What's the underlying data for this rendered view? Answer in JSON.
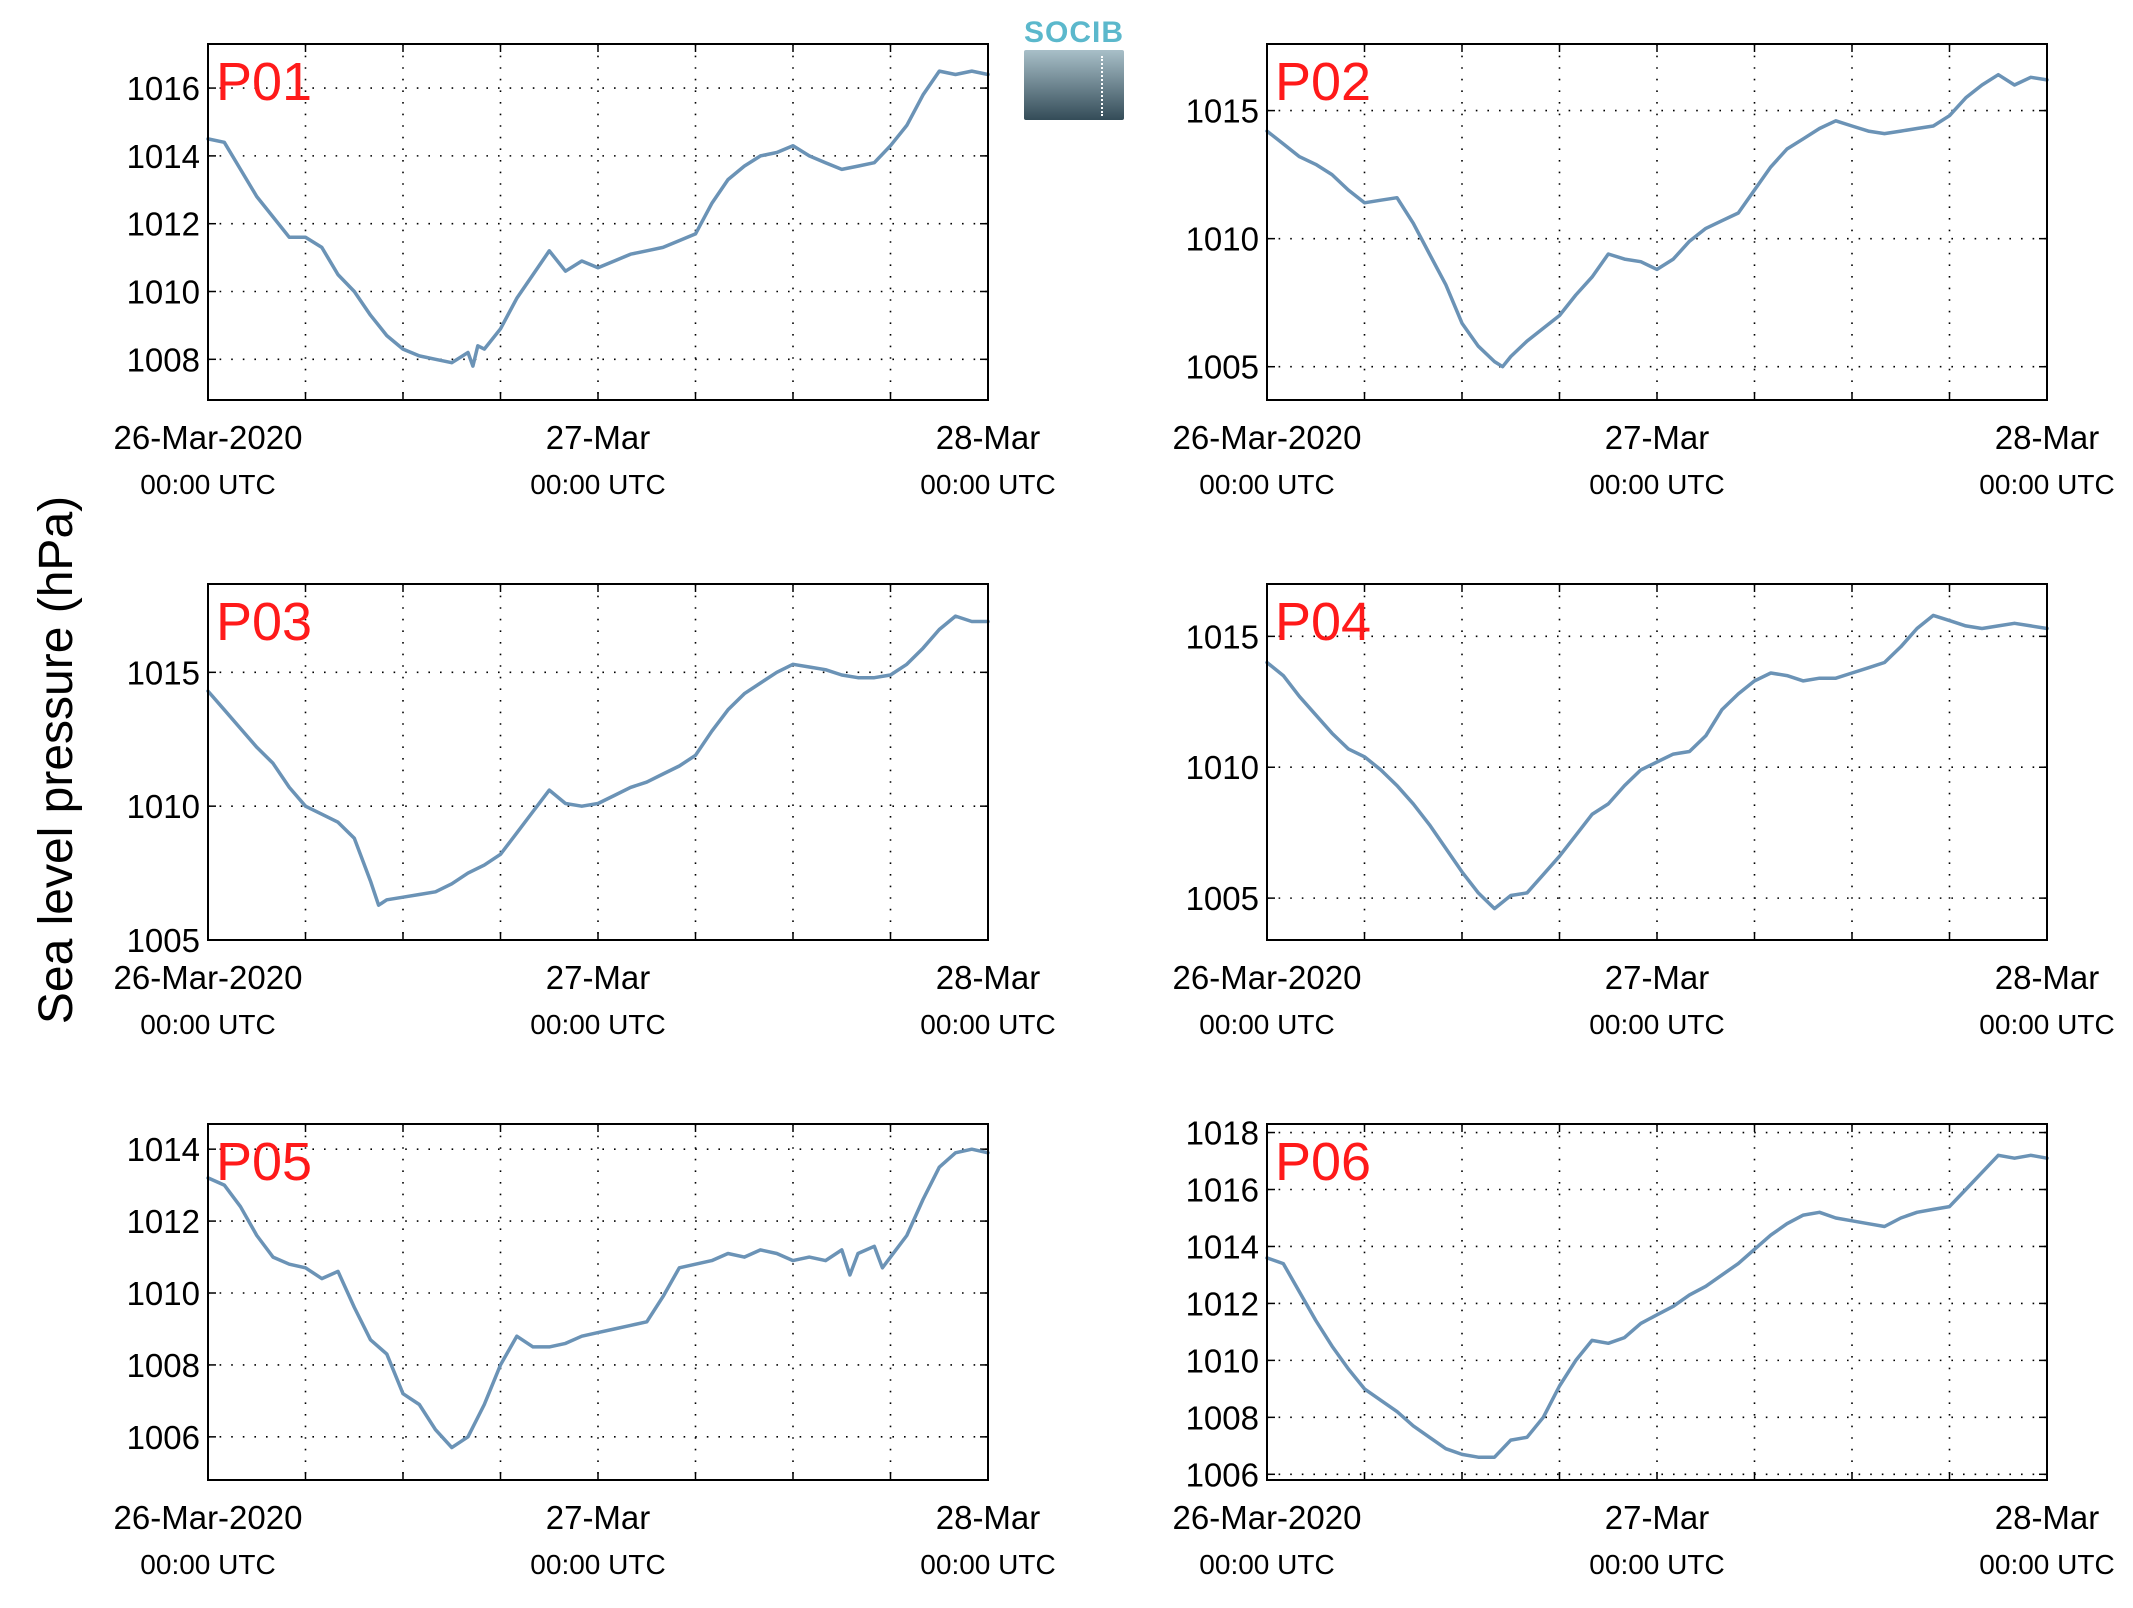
{
  "figure": {
    "ylabel": "Sea level pressure (hPa)",
    "logo_text": "SOCIB"
  },
  "chart_data": [
    {
      "type": "line",
      "panel_label": "P01",
      "ylim": [
        1006.8,
        1017.3
      ],
      "yticks": [
        1008,
        1010,
        1012,
        1014,
        1016
      ],
      "xlim": [
        0,
        48
      ],
      "x_major_ticks": [
        {
          "x": 0,
          "label": "26-Mar-2020",
          "sublabel": "00:00 UTC"
        },
        {
          "x": 24,
          "label": "27-Mar",
          "sublabel": "00:00 UTC"
        },
        {
          "x": 48,
          "label": "28-Mar",
          "sublabel": "00:00 UTC"
        }
      ],
      "x_grid_step": 6,
      "grid": true,
      "series_color": "#6b93b6",
      "x": [
        0,
        1,
        2,
        3,
        4,
        5,
        6,
        7,
        8,
        9,
        10,
        11,
        12,
        13,
        14,
        15,
        16,
        16.3,
        16.6,
        17,
        18,
        19,
        20,
        21,
        22,
        23,
        24,
        25,
        26,
        27,
        28,
        29,
        30,
        31,
        32,
        33,
        34,
        35,
        36,
        37,
        38,
        39,
        40,
        41,
        42,
        43,
        44,
        45,
        46,
        47,
        48
      ],
      "y": [
        1014.5,
        1014.4,
        1013.6,
        1012.8,
        1012.2,
        1011.6,
        1011.6,
        1011.3,
        1010.5,
        1010.0,
        1009.3,
        1008.7,
        1008.3,
        1008.1,
        1008.0,
        1007.9,
        1008.2,
        1007.8,
        1008.4,
        1008.3,
        1008.9,
        1009.8,
        1010.5,
        1011.2,
        1010.6,
        1010.9,
        1010.7,
        1010.9,
        1011.1,
        1011.2,
        1011.3,
        1011.5,
        1011.7,
        1012.6,
        1013.3,
        1013.7,
        1014.0,
        1014.1,
        1014.3,
        1014.0,
        1013.8,
        1013.6,
        1013.7,
        1013.8,
        1014.3,
        1014.9,
        1015.8,
        1016.5,
        1016.4,
        1016.5,
        1016.4
      ]
    },
    {
      "type": "line",
      "panel_label": "P02",
      "ylim": [
        1003.7,
        1017.6
      ],
      "yticks": [
        1005,
        1010,
        1015
      ],
      "xlim": [
        0,
        48
      ],
      "x_major_ticks": [
        {
          "x": 0,
          "label": "26-Mar-2020",
          "sublabel": "00:00 UTC"
        },
        {
          "x": 24,
          "label": "27-Mar",
          "sublabel": "00:00 UTC"
        },
        {
          "x": 48,
          "label": "28-Mar",
          "sublabel": "00:00 UTC"
        }
      ],
      "x_grid_step": 6,
      "grid": true,
      "series_color": "#6b93b6",
      "x": [
        0,
        1,
        2,
        3,
        4,
        5,
        6,
        7,
        8,
        9,
        10,
        11,
        12,
        13,
        14,
        14.5,
        15,
        16,
        17,
        18,
        19,
        20,
        21,
        22,
        23,
        24,
        25,
        26,
        27,
        28,
        29,
        30,
        31,
        32,
        33,
        34,
        35,
        36,
        37,
        38,
        39,
        40,
        41,
        42,
        43,
        44,
        45,
        46,
        47,
        48
      ],
      "y": [
        1014.2,
        1013.7,
        1013.2,
        1012.9,
        1012.5,
        1011.9,
        1011.4,
        1011.5,
        1011.6,
        1010.6,
        1009.4,
        1008.2,
        1006.7,
        1005.8,
        1005.2,
        1005.0,
        1005.4,
        1006.0,
        1006.5,
        1007.0,
        1007.8,
        1008.5,
        1009.4,
        1009.2,
        1009.1,
        1008.8,
        1009.2,
        1009.9,
        1010.4,
        1010.7,
        1011.0,
        1011.9,
        1012.8,
        1013.5,
        1013.9,
        1014.3,
        1014.6,
        1014.4,
        1014.2,
        1014.1,
        1014.2,
        1014.3,
        1014.4,
        1014.8,
        1015.5,
        1016.0,
        1016.4,
        1016.0,
        1016.3,
        1016.2
      ]
    },
    {
      "type": "line",
      "panel_label": "P03",
      "ylim": [
        1005.0,
        1018.3
      ],
      "yticks": [
        1005,
        1010,
        1015
      ],
      "xlim": [
        0,
        48
      ],
      "x_major_ticks": [
        {
          "x": 0,
          "label": "26-Mar-2020",
          "sublabel": "00:00 UTC"
        },
        {
          "x": 24,
          "label": "27-Mar",
          "sublabel": "00:00 UTC"
        },
        {
          "x": 48,
          "label": "28-Mar",
          "sublabel": "00:00 UTC"
        }
      ],
      "x_grid_step": 6,
      "grid": true,
      "series_color": "#6b93b6",
      "x": [
        0,
        1,
        2,
        3,
        4,
        5,
        6,
        7,
        8,
        9,
        10,
        10.5,
        11,
        12,
        13,
        14,
        15,
        16,
        17,
        18,
        19,
        20,
        21,
        22,
        23,
        24,
        25,
        26,
        27,
        28,
        29,
        30,
        31,
        32,
        33,
        34,
        35,
        36,
        37,
        38,
        39,
        40,
        41,
        42,
        43,
        44,
        45,
        46,
        47,
        48
      ],
      "y": [
        1014.3,
        1013.6,
        1012.9,
        1012.2,
        1011.6,
        1010.7,
        1010.0,
        1009.7,
        1009.4,
        1008.8,
        1007.2,
        1006.3,
        1006.5,
        1006.6,
        1006.7,
        1006.8,
        1007.1,
        1007.5,
        1007.8,
        1008.2,
        1009.0,
        1009.8,
        1010.6,
        1010.1,
        1010.0,
        1010.1,
        1010.4,
        1010.7,
        1010.9,
        1011.2,
        1011.5,
        1011.9,
        1012.8,
        1013.6,
        1014.2,
        1014.6,
        1015.0,
        1015.3,
        1015.2,
        1015.1,
        1014.9,
        1014.8,
        1014.8,
        1014.9,
        1015.3,
        1015.9,
        1016.6,
        1017.1,
        1016.9,
        1016.9
      ]
    },
    {
      "type": "line",
      "panel_label": "P04",
      "ylim": [
        1003.4,
        1017.0
      ],
      "yticks": [
        1005,
        1010,
        1015
      ],
      "xlim": [
        0,
        48
      ],
      "x_major_ticks": [
        {
          "x": 0,
          "label": "26-Mar-2020",
          "sublabel": "00:00 UTC"
        },
        {
          "x": 24,
          "label": "27-Mar",
          "sublabel": "00:00 UTC"
        },
        {
          "x": 48,
          "label": "28-Mar",
          "sublabel": "00:00 UTC"
        }
      ],
      "x_grid_step": 6,
      "grid": true,
      "series_color": "#6b93b6",
      "x": [
        0,
        1,
        2,
        3,
        4,
        5,
        6,
        7,
        8,
        9,
        10,
        11,
        12,
        13,
        14,
        15,
        16,
        17,
        18,
        19,
        20,
        21,
        22,
        23,
        24,
        25,
        26,
        27,
        28,
        29,
        30,
        31,
        32,
        33,
        34,
        35,
        36,
        37,
        38,
        39,
        40,
        41,
        42,
        43,
        44,
        45,
        46,
        47,
        48
      ],
      "y": [
        1014.0,
        1013.5,
        1012.7,
        1012.0,
        1011.3,
        1010.7,
        1010.4,
        1009.9,
        1009.3,
        1008.6,
        1007.8,
        1006.9,
        1006.0,
        1005.2,
        1004.6,
        1005.1,
        1005.2,
        1005.9,
        1006.6,
        1007.4,
        1008.2,
        1008.6,
        1009.3,
        1009.9,
        1010.2,
        1010.5,
        1010.6,
        1011.2,
        1012.2,
        1012.8,
        1013.3,
        1013.6,
        1013.5,
        1013.3,
        1013.4,
        1013.4,
        1013.6,
        1013.8,
        1014.0,
        1014.6,
        1015.3,
        1015.8,
        1015.6,
        1015.4,
        1015.3,
        1015.4,
        1015.5,
        1015.4,
        1015.3
      ]
    },
    {
      "type": "line",
      "panel_label": "P05",
      "ylim": [
        1004.8,
        1014.7
      ],
      "yticks": [
        1006,
        1008,
        1010,
        1012,
        1014
      ],
      "xlim": [
        0,
        48
      ],
      "x_major_ticks": [
        {
          "x": 0,
          "label": "26-Mar-2020",
          "sublabel": "00:00 UTC"
        },
        {
          "x": 24,
          "label": "27-Mar",
          "sublabel": "00:00 UTC"
        },
        {
          "x": 48,
          "label": "28-Mar",
          "sublabel": "00:00 UTC"
        }
      ],
      "x_grid_step": 6,
      "grid": true,
      "series_color": "#6b93b6",
      "x": [
        0,
        1,
        2,
        3,
        4,
        5,
        6,
        7,
        8,
        9,
        10,
        11,
        12,
        13,
        14,
        15,
        16,
        17,
        18,
        19,
        20,
        21,
        22,
        23,
        24,
        25,
        26,
        27,
        28,
        29,
        30,
        31,
        32,
        33,
        34,
        35,
        36,
        37,
        38,
        39,
        39.5,
        40,
        41,
        41.5,
        42,
        43,
        44,
        45,
        46,
        47,
        48
      ],
      "y": [
        1013.2,
        1013.0,
        1012.4,
        1011.6,
        1011.0,
        1010.8,
        1010.7,
        1010.4,
        1010.6,
        1009.6,
        1008.7,
        1008.3,
        1007.2,
        1006.9,
        1006.2,
        1005.7,
        1006.0,
        1006.9,
        1008.0,
        1008.8,
        1008.5,
        1008.5,
        1008.6,
        1008.8,
        1008.9,
        1009.0,
        1009.1,
        1009.2,
        1009.9,
        1010.7,
        1010.8,
        1010.9,
        1011.1,
        1011.0,
        1011.2,
        1011.1,
        1010.9,
        1011.0,
        1010.9,
        1011.2,
        1010.5,
        1011.1,
        1011.3,
        1010.7,
        1011.0,
        1011.6,
        1012.6,
        1013.5,
        1013.9,
        1014.0,
        1013.9
      ]
    },
    {
      "type": "line",
      "panel_label": "P06",
      "ylim": [
        1005.8,
        1018.3
      ],
      "yticks": [
        1006,
        1008,
        1010,
        1012,
        1014,
        1016,
        1018
      ],
      "xlim": [
        0,
        48
      ],
      "x_major_ticks": [
        {
          "x": 0,
          "label": "26-Mar-2020",
          "sublabel": "00:00 UTC"
        },
        {
          "x": 24,
          "label": "27-Mar",
          "sublabel": "00:00 UTC"
        },
        {
          "x": 48,
          "label": "28-Mar",
          "sublabel": "00:00 UTC"
        }
      ],
      "x_grid_step": 6,
      "grid": true,
      "series_color": "#6b93b6",
      "x": [
        0,
        1,
        2,
        3,
        4,
        5,
        6,
        7,
        8,
        9,
        10,
        11,
        12,
        13,
        14,
        15,
        16,
        17,
        18,
        19,
        20,
        21,
        22,
        23,
        24,
        25,
        26,
        27,
        28,
        29,
        30,
        31,
        32,
        33,
        34,
        35,
        36,
        37,
        38,
        39,
        40,
        41,
        42,
        43,
        44,
        45,
        46,
        47,
        48
      ],
      "y": [
        1013.6,
        1013.4,
        1012.4,
        1011.4,
        1010.5,
        1009.7,
        1009.0,
        1008.6,
        1008.2,
        1007.7,
        1007.3,
        1006.9,
        1006.7,
        1006.6,
        1006.6,
        1007.2,
        1007.3,
        1008.0,
        1009.1,
        1010.0,
        1010.7,
        1010.6,
        1010.8,
        1011.3,
        1011.6,
        1011.9,
        1012.3,
        1012.6,
        1013.0,
        1013.4,
        1013.9,
        1014.4,
        1014.8,
        1015.1,
        1015.2,
        1015.0,
        1014.9,
        1014.8,
        1014.7,
        1015.0,
        1015.2,
        1015.3,
        1015.4,
        1016.0,
        1016.6,
        1017.2,
        1017.1,
        1017.2,
        1017.1
      ]
    }
  ]
}
